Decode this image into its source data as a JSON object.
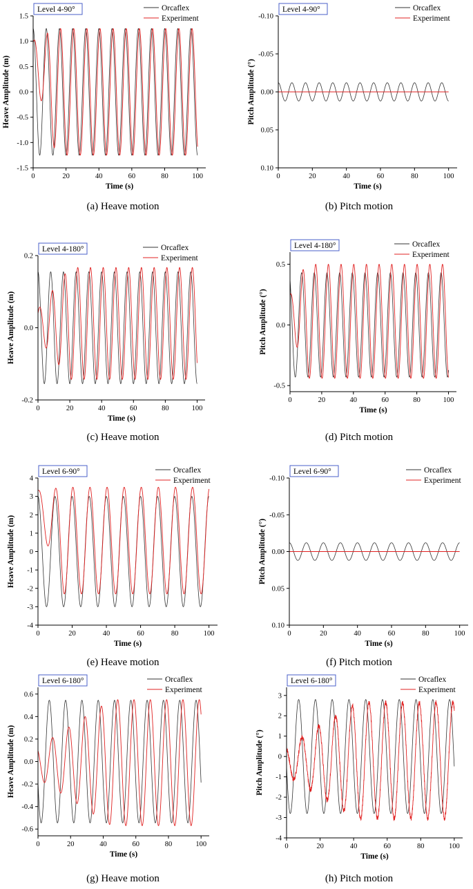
{
  "colors": {
    "orcaflex": "#333333",
    "experiment": "#e02020",
    "level_box": "#4a5fc8",
    "axis": "#000000"
  },
  "panels": [
    {
      "caption": "(a) Heave motion",
      "level_label": "Level 4-90°",
      "legend": [
        "Orcaflex",
        "Experiment"
      ],
      "chart_data": {
        "type": "line",
        "xlabel": "Time (s)",
        "ylabel": "Heave Amplitude (m)",
        "xlim": [
          0,
          105
        ],
        "ylim": [
          -1.5,
          1.5
        ],
        "y_inverted": false,
        "xticks": [
          0,
          20,
          40,
          60,
          80,
          100
        ],
        "yticks": [
          -1.5,
          -1.0,
          -0.5,
          0.0,
          0.5,
          1.0,
          1.5
        ],
        "ytick_labels": [
          "-1.5",
          "-1.0",
          "-0.5",
          "0.0",
          "0.5",
          "1.0",
          "1.5"
        ],
        "series": [
          {
            "name": "Orcaflex",
            "amplitude": 1.25,
            "period_s": 8.0,
            "phase_deg": 90,
            "t_start": 0,
            "t_end": 100
          },
          {
            "name": "Experiment",
            "amplitude": 1.25,
            "period_s": 8.0,
            "phase_deg": 60,
            "t_start": 0,
            "t_end": 100,
            "ramp_s": 14,
            "start_value": 0.7
          }
        ]
      }
    },
    {
      "caption": "(b) Pitch motion",
      "level_label": "Level 4-90°",
      "legend": [
        "Orcaflex",
        "Experiment"
      ],
      "chart_data": {
        "type": "line",
        "xlabel": "Time (s)",
        "ylabel": "Pitch Amplitude (°)",
        "xlim": [
          0,
          105
        ],
        "ylim": [
          -0.1,
          0.1
        ],
        "y_inverted": true,
        "xticks": [
          0,
          20,
          40,
          60,
          80,
          100
        ],
        "yticks": [
          -0.1,
          -0.05,
          0.0,
          0.05,
          0.1
        ],
        "ytick_labels": [
          "-0.10",
          "-0.05",
          "0.00",
          "0.05",
          "0.10"
        ],
        "series": [
          {
            "name": "Orcaflex",
            "amplitude": 0.012,
            "period_s": 8.0,
            "phase_deg": -90,
            "t_start": 0,
            "t_end": 100
          },
          {
            "name": "Experiment",
            "amplitude": 0.0,
            "period_s": 8.0,
            "phase_deg": 0,
            "t_start": 0,
            "t_end": 100
          }
        ]
      }
    },
    {
      "caption": "(c) Heave motion",
      "level_label": "Level 4-180°",
      "legend": [
        "Orcaflex",
        "Experiment"
      ],
      "chart_data": {
        "type": "line",
        "xlabel": "Time (s)",
        "ylabel": "Heave Amplitude (m)",
        "xlim": [
          0,
          105
        ],
        "ylim": [
          -0.2,
          0.2
        ],
        "y_inverted": false,
        "xticks": [
          0,
          20,
          40,
          60,
          80,
          100
        ],
        "yticks": [
          -0.2,
          0.0,
          0.2
        ],
        "ytick_labels": [
          "-0.2",
          "0.0",
          "0.2"
        ],
        "series": [
          {
            "name": "Orcaflex",
            "amplitude": 0.155,
            "period_s": 8.0,
            "phase_deg": 90,
            "t_start": 0,
            "t_end": 100
          },
          {
            "name": "Experiment",
            "amplitude": 0.155,
            "period_s": 8.0,
            "phase_deg": 45,
            "t_start": 0,
            "t_end": 100,
            "ramp_s": 20,
            "offset": 0.012,
            "start_value": 0.0
          }
        ]
      }
    },
    {
      "caption": "(d) Pitch motion",
      "level_label": "Level 4-180°",
      "legend": [
        "Orcaflex",
        "Experiment"
      ],
      "chart_data": {
        "type": "line",
        "xlabel": "Time (s)",
        "ylabel": "Pitch Amplitude (°)",
        "xlim": [
          0,
          105
        ],
        "ylim": [
          -0.55,
          0.6
        ],
        "y_inverted": false,
        "xticks": [
          0,
          20,
          40,
          60,
          80,
          100
        ],
        "yticks": [
          -0.5,
          0.0,
          0.5
        ],
        "ytick_labels": [
          "-0.5",
          "0.0",
          "0.5"
        ],
        "series": [
          {
            "name": "Orcaflex",
            "amplitude": 0.43,
            "period_s": 8.0,
            "phase_deg": 120,
            "t_start": 0,
            "t_end": 100
          },
          {
            "name": "Experiment",
            "amplitude": 0.47,
            "period_s": 8.0,
            "phase_deg": 80,
            "t_start": 0,
            "t_end": 100,
            "ramp_s": 10,
            "offset": 0.03,
            "start_value": 0.1
          }
        ]
      }
    },
    {
      "caption": "(e) Heave motion",
      "level_label": "Level 6-90°",
      "legend": [
        "Orcaflex",
        "Experiment"
      ],
      "chart_data": {
        "type": "line",
        "xlabel": "Time (s)",
        "ylabel": "Heave Amplitude (m)",
        "xlim": [
          0,
          105
        ],
        "ylim": [
          -4,
          4
        ],
        "y_inverted": false,
        "xticks": [
          0,
          20,
          40,
          60,
          80,
          100
        ],
        "yticks": [
          -4,
          -3,
          -2,
          -1,
          0,
          1,
          2,
          3,
          4
        ],
        "ytick_labels": [
          "-4",
          "-3",
          "-2",
          "-1",
          "0",
          "1",
          "2",
          "3",
          "4"
        ],
        "series": [
          {
            "name": "Orcaflex",
            "amplitude": 3.0,
            "period_s": 10.0,
            "phase_deg": 90,
            "t_start": 0,
            "t_end": 100
          },
          {
            "name": "Experiment",
            "amplitude": 2.9,
            "period_s": 10.0,
            "phase_deg": 75,
            "t_start": 0,
            "t_end": 100,
            "ramp_s": 15,
            "offset": 0.6,
            "start_value": 2.0
          }
        ]
      }
    },
    {
      "caption": "(f) Pitch motion",
      "level_label": "Level 6-90°",
      "legend": [
        "Orcaflex",
        "Experiment"
      ],
      "chart_data": {
        "type": "line",
        "xlabel": "Time (s)",
        "ylabel": "Pitch Amplitude (°)",
        "xlim": [
          0,
          105
        ],
        "ylim": [
          -0.1,
          0.1
        ],
        "y_inverted": true,
        "xticks": [
          0,
          20,
          40,
          60,
          80,
          100
        ],
        "yticks": [
          -0.1,
          -0.05,
          0.0,
          0.05,
          0.1
        ],
        "ytick_labels": [
          "-0.10",
          "-0.05",
          "0.00",
          "0.05",
          "0.10"
        ],
        "series": [
          {
            "name": "Orcaflex",
            "amplitude": 0.012,
            "period_s": 10.0,
            "phase_deg": -90,
            "t_start": 0,
            "t_end": 100
          },
          {
            "name": "Experiment",
            "amplitude": 0.0,
            "period_s": 10.0,
            "phase_deg": 0,
            "t_start": 0,
            "t_end": 100
          }
        ]
      }
    },
    {
      "caption": "(g) Heave motion",
      "level_label": "Level 6-180°",
      "legend": [
        "Orcaflex",
        "Experiment"
      ],
      "chart_data": {
        "type": "line",
        "xlabel": "Time (s)",
        "ylabel": "Heave Amplitude (m)",
        "xlim": [
          0,
          105
        ],
        "ylim": [
          -0.66,
          0.66
        ],
        "y_inverted": false,
        "xticks": [
          0,
          20,
          40,
          60,
          80,
          100
        ],
        "yticks": [
          -0.6,
          -0.4,
          -0.2,
          0.0,
          0.2,
          0.4,
          0.6
        ],
        "ytick_labels": [
          "-0.6",
          "-0.4",
          "-0.2",
          "0.0",
          "0.2",
          "0.4",
          "0.6"
        ],
        "series": [
          {
            "name": "Orcaflex",
            "amplitude": 0.545,
            "period_s": 10.0,
            "phase_deg": 200,
            "t_start": 0,
            "t_end": 100
          },
          {
            "name": "Experiment",
            "amplitude": 0.56,
            "period_s": 10.0,
            "phase_deg": 130,
            "t_start": 0,
            "t_end": 100,
            "ramp_s": 45,
            "offset": -0.01,
            "start_value": 0.0
          }
        ]
      }
    },
    {
      "caption": "(h) Pitch motion",
      "level_label": "Level 6-180°",
      "legend": [
        "Orcaflex",
        "Experiment"
      ],
      "chart_data": {
        "type": "line",
        "xlabel": "Time (s)",
        "ylabel": "Pitch Amplitude (°)",
        "xlim": [
          0,
          105
        ],
        "ylim": [
          -4,
          3.4
        ],
        "y_inverted": false,
        "xticks": [
          0,
          20,
          40,
          60,
          80,
          100
        ],
        "yticks": [
          -4,
          -3,
          -2,
          -1,
          0,
          1,
          2,
          3
        ],
        "ytick_labels": [
          "-4",
          "-3",
          "-2",
          "-1",
          "0",
          "1",
          "2",
          "3"
        ],
        "series": [
          {
            "name": "Orcaflex",
            "amplitude": 2.8,
            "period_s": 10.0,
            "phase_deg": 190,
            "t_start": 0,
            "t_end": 100
          },
          {
            "name": "Experiment",
            "amplitude": 2.85,
            "period_s": 10.0,
            "phase_deg": 120,
            "t_start": 0,
            "t_end": 100,
            "ramp_s": 42,
            "offset": -0.2,
            "start_value": 0.0,
            "noise": 0.12
          }
        ]
      }
    }
  ]
}
